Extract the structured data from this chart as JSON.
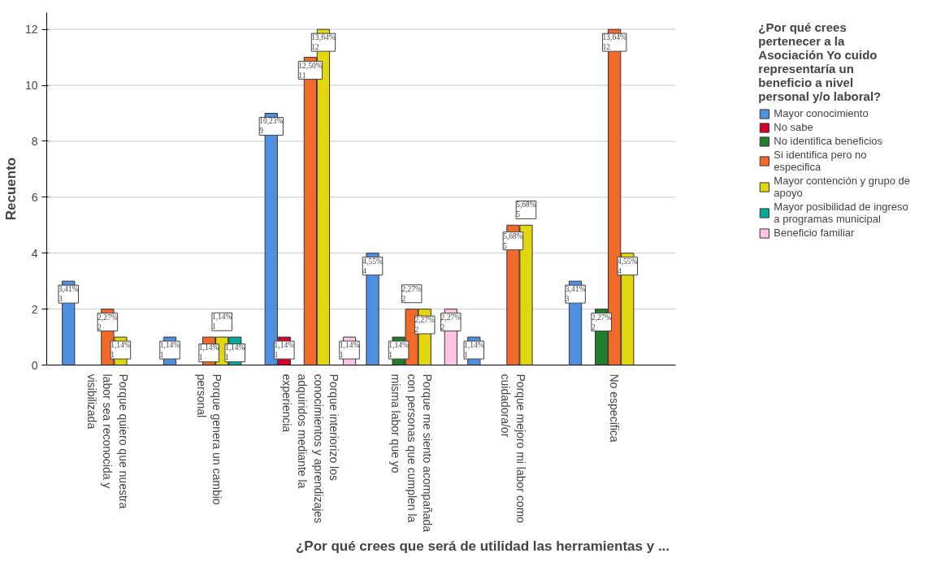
{
  "chart_data": {
    "type": "bar",
    "xlabel": "¿Por qué crees que será de utilidad las herramientas y ...",
    "ylabel": "Recuento",
    "legend_title": "¿Por qué crees pertenecer a la Asociación Yo cuido representaría un beneficio a nivel personal y/o laboral?",
    "categories": [
      "Porque quiero que nuestra labor sea reconocida y visibilizada",
      "Porque genera un cambio personal",
      "Porque interiorizo los conocimientos y aprendizajes adquiridos mediante la experiencia",
      "Porque me siento acompañada con personas que cumplen la misma labor que yo",
      "Porque mejoro mi labor como cuidadora/or",
      "No especifica"
    ],
    "series": [
      {
        "name": "Mayor conocimiento",
        "color": "#4f8fe0",
        "values": [
          3,
          1,
          9,
          4,
          1,
          3
        ],
        "value_labels": [
          "3,41%\n3",
          "1,14%\n1",
          "10,23%\n9",
          "4,55%\n4",
          "1,14%\n1",
          "3,41%\n3"
        ]
      },
      {
        "name": "No sabe",
        "color": "#d6002a",
        "values": [
          null,
          null,
          1,
          null,
          null,
          null
        ],
        "value_labels": [
          null,
          null,
          "1,14%\n1",
          null,
          null,
          null
        ]
      },
      {
        "name": "No identifica beneficios",
        "color": "#1f7f2a",
        "values": [
          null,
          null,
          null,
          1,
          null,
          2
        ],
        "value_labels": [
          null,
          null,
          null,
          "1,14%\n1",
          null,
          "2,27%\n2"
        ]
      },
      {
        "name": "Si identifica pero no especifica",
        "color": "#f26a2a",
        "values": [
          2,
          1,
          11,
          2,
          5,
          12
        ],
        "value_labels": [
          "2,27%\n2",
          "1,14%\n1",
          "12,50%\n11",
          "2,27%\n2",
          "5,68%\n5",
          "13,64%\n12"
        ]
      },
      {
        "name": "Mayor contención y grupo de apoyo",
        "color": "#e2d60e",
        "values": [
          1,
          1,
          12,
          2,
          5,
          4
        ],
        "value_labels": [
          "1,14%\n1",
          "1,14%\n1",
          "13,64%\n12",
          "2,27%\n2",
          "5,68%\n5",
          "4,55%\n4"
        ]
      },
      {
        "name": "Mayor posibilidad de ingreso a programas municipal",
        "color": "#00a99a",
        "values": [
          null,
          1,
          null,
          null,
          null,
          null
        ],
        "value_labels": [
          null,
          "1,14%\n1",
          null,
          null,
          null,
          null
        ]
      },
      {
        "name": "Beneficio familiar",
        "color": "#ffc4e4",
        "values": [
          null,
          null,
          1,
          2,
          null,
          null
        ],
        "value_labels": [
          null,
          null,
          "1,14%\n1",
          "2,27%\n2",
          null,
          null
        ]
      }
    ],
    "ylim": [
      0,
      12.6
    ],
    "yticks": [
      0,
      2,
      4,
      6,
      8,
      10,
      12
    ],
    "grid": "y",
    "legend": "right"
  }
}
